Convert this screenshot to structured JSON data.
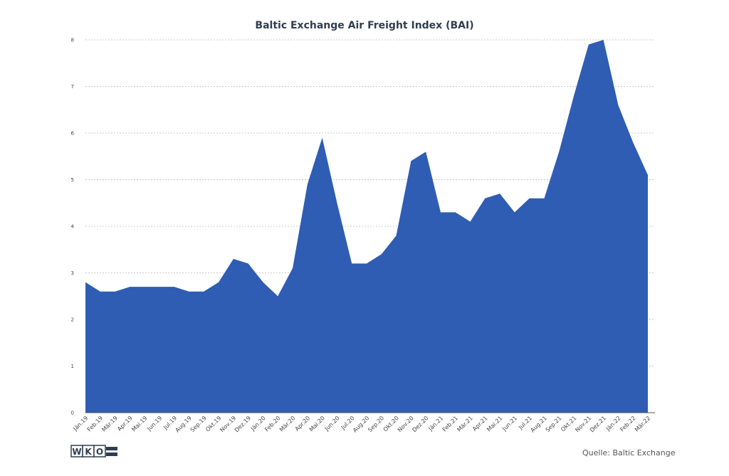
{
  "chart_data": {
    "type": "area",
    "title": "Baltic Exchange Air Freight Index (BAI)",
    "xlabel": "",
    "ylabel": "",
    "ylim": [
      0,
      8
    ],
    "yticks": [
      0,
      1,
      2,
      3,
      4,
      5,
      6,
      7,
      8
    ],
    "grid": true,
    "color": "#2e5db3",
    "categories": [
      "Jän.19",
      "Feb.19",
      "Mär.19",
      "Apr.19",
      "Mai.19",
      "Jun.19",
      "Jul.19",
      "Aug.19",
      "Sep.19",
      "Okt.19",
      "Nov.19",
      "Dez.19",
      "Jän.20",
      "Feb.20",
      "Mär.20",
      "Apr.20",
      "Mai.20",
      "Jun.20",
      "Jul.20",
      "Aug.20",
      "Sep.20",
      "Okt.20",
      "Nov.20",
      "Dez.20",
      "Jän.21",
      "Feb.21",
      "Mär.21",
      "Apr.21",
      "Mai.21",
      "Jun.21",
      "Jul.21",
      "Aug.21",
      "Sep.21",
      "Okt.21",
      "Nov.21",
      "Dez.21",
      "Jän.22",
      "Feb.22",
      "Mär.22"
    ],
    "values": [
      2.8,
      2.6,
      2.6,
      2.7,
      2.7,
      2.7,
      2.7,
      2.6,
      2.6,
      2.8,
      3.3,
      3.2,
      2.8,
      2.5,
      3.1,
      4.9,
      5.9,
      4.5,
      3.2,
      3.2,
      3.4,
      3.8,
      5.4,
      5.6,
      4.3,
      4.3,
      4.1,
      4.6,
      4.7,
      4.3,
      4.6,
      4.6,
      5.6,
      6.8,
      7.9,
      8.0,
      6.6,
      5.8,
      5.1
    ]
  },
  "footer": {
    "logo_letters": [
      "W",
      "K",
      "O"
    ],
    "source": "Quelle: Baltic Exchange"
  }
}
